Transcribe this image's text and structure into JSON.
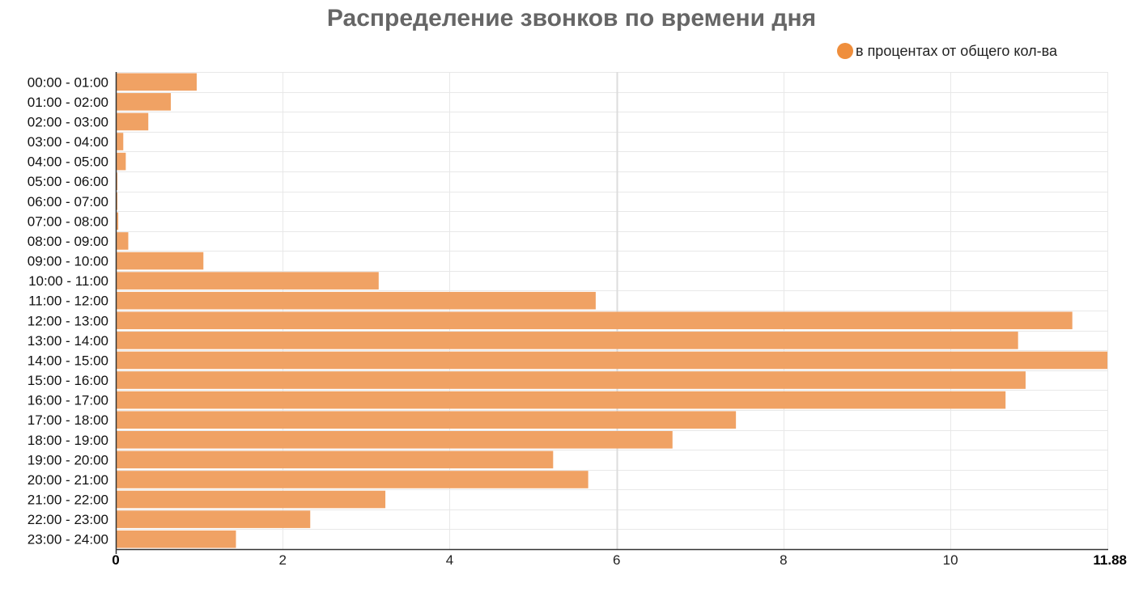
{
  "colors": {
    "bar": "#f0a264",
    "legend_marker": "#ef8e3c",
    "grid": "#e8e8e8",
    "axis": "#333333",
    "title": "#666666"
  },
  "chart_data": {
    "type": "bar",
    "orientation": "horizontal",
    "title": "Распределение звонков по времени дня",
    "legend_position": "top-right",
    "grid": true,
    "series": [
      {
        "name": "в процентах от общего кол-ва",
        "values": [
          0.97,
          0.66,
          0.39,
          0.09,
          0.12,
          0.02,
          0.02,
          0.03,
          0.15,
          1.05,
          3.15,
          5.75,
          11.46,
          10.81,
          11.88,
          10.9,
          10.66,
          7.43,
          6.67,
          5.24,
          5.66,
          3.23,
          2.33,
          1.44
        ]
      }
    ],
    "categories": [
      "00:00 - 01:00",
      "01:00 - 02:00",
      "02:00 - 03:00",
      "03:00 - 04:00",
      "04:00 - 05:00",
      "05:00 - 06:00",
      "06:00 - 07:00",
      "07:00 - 08:00",
      "08:00 - 09:00",
      "09:00 - 10:00",
      "10:00 - 11:00",
      "11:00 - 12:00",
      "12:00 - 13:00",
      "13:00 - 14:00",
      "14:00 - 15:00",
      "15:00 - 16:00",
      "16:00 - 17:00",
      "17:00 - 18:00",
      "18:00 - 19:00",
      "19:00 - 20:00",
      "20:00 - 21:00",
      "21:00 - 22:00",
      "22:00 - 23:00",
      "23:00 - 24:00"
    ],
    "xlim": [
      0,
      11.88
    ],
    "x_ticks": [
      {
        "value": 0,
        "label": "0",
        "bold": true
      },
      {
        "value": 2,
        "label": "2"
      },
      {
        "value": 4,
        "label": "4"
      },
      {
        "value": 6,
        "label": "6"
      },
      {
        "value": 8,
        "label": "8"
      },
      {
        "value": 10,
        "label": "10"
      },
      {
        "value": 11.88,
        "label": "11.88",
        "bold": true
      }
    ]
  }
}
